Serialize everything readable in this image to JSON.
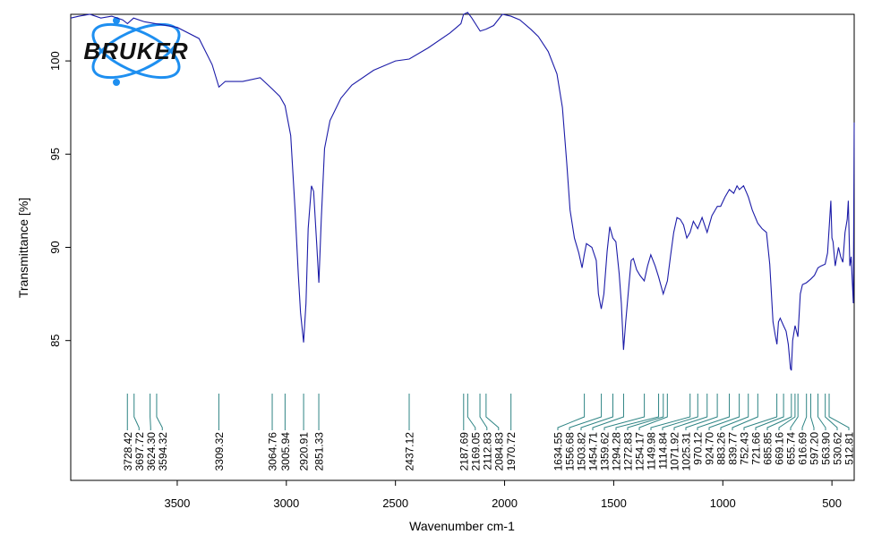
{
  "chart_data": {
    "type": "line",
    "logo_text": "BRUKER",
    "xlabel": "Wavenumber cm-1",
    "ylabel": "Transmittance [%]",
    "xlim": [
      3988,
      398
    ],
    "ylim": [
      77.5,
      102.5
    ],
    "xticks": [
      3500,
      3000,
      2500,
      2000,
      1500,
      1000,
      500
    ],
    "yticks": [
      85,
      90,
      95,
      100
    ],
    "color": "#1c1ca8",
    "x": [
      3988,
      3950,
      3900,
      3850,
      3800,
      3750,
      3728,
      3700,
      3650,
      3600,
      3500,
      3400,
      3340,
      3309,
      3280,
      3200,
      3120,
      3065,
      3030,
      3006,
      2980,
      2960,
      2945,
      2935,
      2921,
      2910,
      2900,
      2885,
      2875,
      2860,
      2851,
      2840,
      2825,
      2800,
      2750,
      2700,
      2600,
      2500,
      2437,
      2350,
      2250,
      2200,
      2188,
      2169,
      2150,
      2112,
      2085,
      2050,
      2010,
      1971,
      1930,
      1880,
      1845,
      1800,
      1760,
      1735,
      1715,
      1700,
      1680,
      1660,
      1645,
      1635,
      1625,
      1600,
      1580,
      1570,
      1557,
      1545,
      1530,
      1518,
      1504,
      1490,
      1475,
      1465,
      1455,
      1445,
      1430,
      1420,
      1410,
      1395,
      1380,
      1360,
      1345,
      1330,
      1310,
      1294,
      1280,
      1273,
      1254,
      1240,
      1225,
      1210,
      1195,
      1180,
      1165,
      1150,
      1135,
      1115,
      1095,
      1072,
      1050,
      1025,
      1010,
      990,
      970,
      950,
      935,
      924,
      905,
      890,
      883,
      865,
      840,
      820,
      800,
      785,
      770,
      760,
      752,
      745,
      737,
      722,
      710,
      700,
      690,
      686,
      680,
      669,
      656,
      645,
      635,
      617,
      597,
      580,
      564,
      550,
      531,
      520,
      513,
      505,
      500,
      495,
      485,
      470,
      460,
      450,
      440,
      430,
      425,
      418,
      412,
      406,
      402,
      398
    ],
    "values": [
      102.3,
      102.4,
      102.5,
      102.3,
      102.4,
      102.2,
      102.0,
      102.3,
      102.1,
      102.0,
      101.8,
      101.2,
      99.8,
      98.6,
      98.9,
      98.9,
      99.1,
      98.5,
      98.1,
      97.6,
      96.0,
      92.0,
      88.5,
      86.5,
      84.9,
      87.0,
      91.0,
      93.3,
      93.0,
      90.0,
      88.1,
      91.5,
      95.3,
      96.8,
      98.0,
      98.7,
      99.5,
      100.0,
      100.1,
      100.7,
      101.5,
      102.0,
      102.5,
      102.6,
      102.3,
      101.6,
      101.7,
      101.9,
      102.5,
      102.4,
      102.2,
      101.7,
      101.3,
      100.5,
      99.3,
      97.5,
      94.5,
      92.0,
      90.5,
      89.7,
      88.9,
      89.6,
      90.2,
      90.0,
      89.3,
      87.5,
      86.7,
      87.5,
      89.8,
      91.1,
      90.5,
      90.3,
      88.6,
      87.0,
      84.5,
      86.0,
      88.0,
      89.3,
      89.4,
      88.8,
      88.5,
      88.2,
      89.0,
      89.6,
      89.0,
      88.4,
      87.8,
      87.5,
      88.2,
      89.5,
      90.8,
      91.6,
      91.5,
      91.2,
      90.5,
      90.8,
      91.4,
      91.0,
      91.6,
      90.8,
      91.7,
      92.2,
      92.2,
      92.7,
      93.1,
      92.9,
      93.3,
      93.1,
      93.3,
      92.9,
      92.7,
      92.0,
      91.3,
      91.0,
      90.8,
      89.1,
      86.0,
      85.3,
      84.8,
      86.0,
      86.2,
      85.8,
      85.5,
      84.8,
      83.5,
      83.4,
      85.0,
      85.8,
      85.2,
      87.5,
      88.0,
      88.1,
      88.3,
      88.5,
      88.9,
      89.0,
      89.1,
      89.7,
      91.0,
      92.5,
      90.5,
      90.3,
      89.0,
      90.0,
      89.5,
      89.2,
      90.8,
      91.5,
      92.5,
      89.0,
      89.5,
      88.0,
      87.0,
      96.7
    ],
    "peaks": {
      "values": [
        3728.42,
        3697.72,
        3624.3,
        3594.32,
        3309.32,
        3064.76,
        3005.94,
        2920.91,
        2851.33,
        2437.12,
        2187.69,
        2169.05,
        2112.83,
        2084.83,
        1970.72,
        1634.55,
        1556.68,
        1503.82,
        1454.71,
        1359.62,
        1294.28,
        1272.83,
        1254.17,
        1149.98,
        1114.84,
        1071.92,
        1025.31,
        970.12,
        924.7,
        883.26,
        839.77,
        752.43,
        721.66,
        685.85,
        669.16,
        655.74,
        616.69,
        597.2,
        563.9,
        530.62,
        512.81
      ],
      "value_labels": [
        "3728.42",
        "3697.72",
        "3624.30",
        "3594.32",
        "3309.32",
        "3064.76",
        "3005.94",
        "2920.91",
        "2851.33",
        "2437.12",
        "2187.69",
        "2169.05",
        "2112.83",
        "2084.83",
        "1970.72",
        "1634.55",
        "1556.68",
        "1503.82",
        "1454.71",
        "1359.62",
        "1294.28",
        "1272.83",
        "1254.17",
        "1149.98",
        "1114.84",
        "1071.92",
        "1025.31",
        "970.12",
        "924.70",
        "883.26",
        "839.77",
        "752.43",
        "721.66",
        "685.85",
        "669.16",
        "655.74",
        "616.69",
        "597.20",
        "563.90",
        "530.62",
        "512.81"
      ],
      "color": "#2e8484"
    }
  }
}
